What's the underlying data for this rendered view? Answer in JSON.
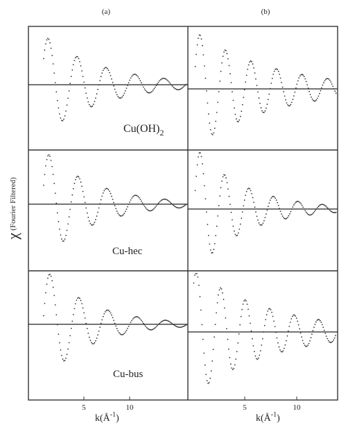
{
  "figure": {
    "ylabel_symbol": "χ",
    "ylabel_note": "(Fourier Filtered)",
    "columns": [
      {
        "label": "(a)",
        "xlabel_main": "k(Å",
        "xlabel_sup": "-1",
        "xlabel_close": ")",
        "ticks": [
          "5",
          "10"
        ]
      },
      {
        "label": "(b)",
        "xlabel_main": "k(Å",
        "xlabel_sup": "-1",
        "xlabel_close": ")",
        "ticks": [
          "5",
          "10"
        ]
      }
    ],
    "rows": [
      {
        "main": "Cu(OH)",
        "sub": "2"
      },
      {
        "main": "Cu-hec",
        "sub": ""
      },
      {
        "main": "Cu-bus",
        "sub": ""
      }
    ]
  },
  "chart_data": {
    "type": "scatter",
    "title": "",
    "xlabel": "k(Å-1)",
    "ylabel": "χ (Fourier Filtered)",
    "xlim_a": [
      2,
      12.5
    ],
    "xlim_b": [
      2.5,
      12.7
    ],
    "ylim": [
      -1.2,
      1.2
    ],
    "panels": [
      {
        "column": "a",
        "sample": "Cu(OH)2",
        "start": 3.0,
        "A": 1.0,
        "f": 1.05,
        "phi": 0.55,
        "decay": 0.26
      },
      {
        "column": "b",
        "sample": "Cu(OH)2",
        "start": 3.0,
        "A": 1.15,
        "f": 1.15,
        "phi": 0.4,
        "decay": 0.19
      },
      {
        "column": "a",
        "sample": "Cu-hec",
        "start": 3.0,
        "A": 1.1,
        "f": 1.05,
        "phi": 0.35,
        "decay": 0.3
      },
      {
        "column": "b",
        "sample": "Cu-hec",
        "start": 3.0,
        "A": 1.25,
        "f": 1.2,
        "phi": 0.3,
        "decay": 0.3
      },
      {
        "column": "a",
        "sample": "Cu-bus",
        "start": 3.0,
        "A": 1.15,
        "f": 1.05,
        "phi": 0.15,
        "decay": 0.33
      },
      {
        "column": "b",
        "sample": "Cu-bus",
        "start": 2.9,
        "A": 1.25,
        "f": 1.2,
        "phi": 0.9,
        "decay": 0.19
      }
    ]
  }
}
